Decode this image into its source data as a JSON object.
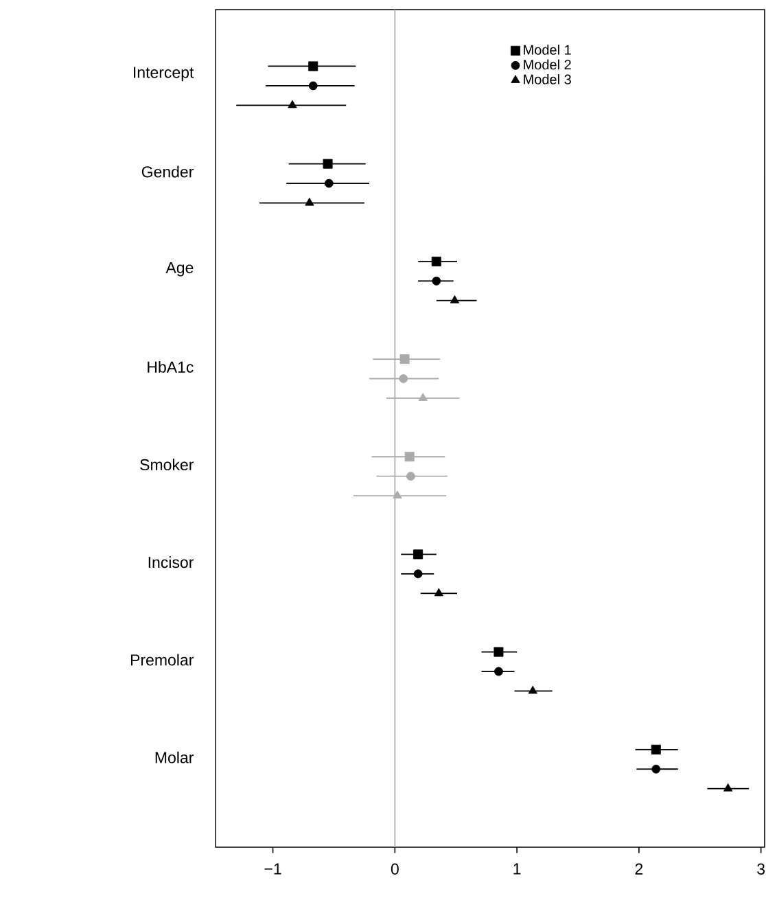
{
  "chart_data": {
    "type": "scatter",
    "orientation": "horizontal",
    "categories": [
      "Intercept",
      "Gender",
      "Age",
      "HbA1c",
      "Smoker",
      "Incisor",
      "Premolar",
      "Molar"
    ],
    "series": [
      {
        "name": "Model 1",
        "color": "#000000",
        "marker": "square",
        "colors": [
          "#000000",
          "#000000",
          "#000000",
          "#aaaaaa",
          "#aaaaaa",
          "#000000",
          "#000000",
          "#000000"
        ],
        "values": [
          -0.67,
          -0.55,
          0.34,
          0.08,
          0.12,
          0.19,
          0.85,
          2.14
        ],
        "errors": [
          [
            -1.04,
            -0.32
          ],
          [
            -0.87,
            -0.24
          ],
          [
            0.19,
            0.51
          ],
          [
            -0.18,
            0.37
          ],
          [
            -0.19,
            0.41
          ],
          [
            0.05,
            0.34
          ],
          [
            0.71,
            1.0
          ],
          [
            1.97,
            2.32
          ]
        ]
      },
      {
        "name": "Model 2",
        "color": "#000000",
        "marker": "circle",
        "colors": [
          "#000000",
          "#000000",
          "#000000",
          "#aaaaaa",
          "#aaaaaa",
          "#000000",
          "#000000",
          "#000000"
        ],
        "values": [
          -0.67,
          -0.54,
          0.34,
          0.07,
          0.13,
          0.19,
          0.85,
          2.14
        ],
        "errors": [
          [
            -1.06,
            -0.33
          ],
          [
            -0.89,
            -0.21
          ],
          [
            0.19,
            0.48
          ],
          [
            -0.21,
            0.36
          ],
          [
            -0.15,
            0.43
          ],
          [
            0.05,
            0.32
          ],
          [
            0.71,
            0.98
          ],
          [
            1.98,
            2.32
          ]
        ]
      },
      {
        "name": "Model 3",
        "color": "#000000",
        "marker": "triangle",
        "colors": [
          "#000000",
          "#000000",
          "#000000",
          "#aaaaaa",
          "#aaaaaa",
          "#000000",
          "#000000",
          "#000000"
        ],
        "values": [
          -0.84,
          -0.7,
          0.49,
          0.23,
          0.02,
          0.36,
          1.13,
          2.73
        ],
        "errors": [
          [
            -1.3,
            -0.4
          ],
          [
            -1.11,
            -0.25
          ],
          [
            0.34,
            0.67
          ],
          [
            -0.07,
            0.53
          ],
          [
            -0.34,
            0.42
          ],
          [
            0.21,
            0.51
          ],
          [
            0.98,
            1.29
          ],
          [
            2.56,
            2.9
          ]
        ]
      }
    ],
    "xlim": [
      -1.47,
      3.03
    ],
    "xticks": [
      {
        "value": -1,
        "label": "−1"
      },
      0,
      1,
      2,
      3
    ],
    "ref_lines": [
      {
        "axis": "x",
        "value": 0,
        "color": "#b4b4b4"
      }
    ],
    "grid": false,
    "legend": "top right"
  }
}
